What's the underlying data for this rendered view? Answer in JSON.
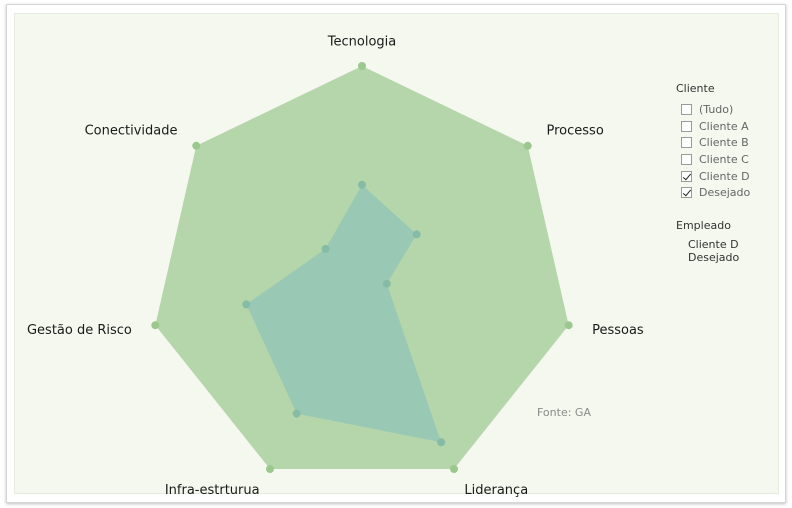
{
  "colors": {
    "desejado": "#b5d5aa",
    "desejado_marker": "#9cc890",
    "cliente_d": "#98c8b4",
    "cliente_d_marker": "#86bca6",
    "label": "#1a1a1a"
  },
  "legend_filter": {
    "title": "Cliente",
    "items": [
      {
        "label": "(Tudo)",
        "checked": false
      },
      {
        "label": "Cliente A",
        "checked": false
      },
      {
        "label": "Cliente B",
        "checked": false
      },
      {
        "label": "Cliente C",
        "checked": false
      },
      {
        "label": "Cliente D",
        "checked": true
      },
      {
        "label": "Desejado",
        "checked": true
      }
    ]
  },
  "legend_color": {
    "title": "Empleado",
    "items": [
      {
        "label": "Cliente D",
        "color": "#c6e0d6"
      },
      {
        "label": "Desejado",
        "color": "#b5d5aa"
      }
    ]
  },
  "source": "Fonte: GA",
  "chart_data": {
    "type": "radar",
    "axes": [
      "Tecnologia",
      "Processo",
      "Pessoas",
      "Liderança",
      "Infra-estrturua",
      "Gestão de Risco",
      "Conectividade"
    ],
    "series": [
      {
        "name": "Desejado",
        "values": [
          5,
          5,
          5,
          5,
          5,
          5,
          5
        ]
      },
      {
        "name": "Cliente D",
        "values": [
          2.2,
          1.65,
          0.6,
          4.3,
          3.55,
          2.8,
          1.1
        ]
      }
    ],
    "rmax": 5
  }
}
